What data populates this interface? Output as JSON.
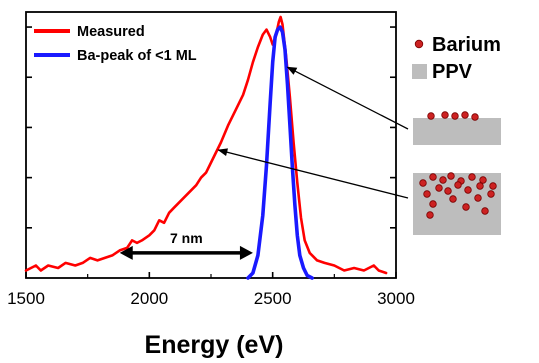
{
  "chart_data": {
    "type": "line",
    "x_axis": {
      "title": "Energy (eV)",
      "range": [
        1500,
        3000
      ],
      "ticks": [
        1500,
        2000,
        2500,
        3000
      ],
      "tick_labels": [
        "1500",
        "2000",
        "2500",
        "3000"
      ]
    },
    "y_axis": {
      "title": "",
      "range": [
        0,
        1.06
      ],
      "tick_values": [
        0.2,
        0.4,
        0.6,
        0.8,
        1.0
      ],
      "tick_labels_shown": false
    },
    "legend_position": "top-left",
    "series": [
      {
        "name": "Measured",
        "color": "#ff0000",
        "points": [
          [
            1500,
            0.03
          ],
          [
            1540,
            0.05
          ],
          [
            1560,
            0.03
          ],
          [
            1590,
            0.05
          ],
          [
            1630,
            0.04
          ],
          [
            1660,
            0.06
          ],
          [
            1700,
            0.05
          ],
          [
            1730,
            0.06
          ],
          [
            1760,
            0.08
          ],
          [
            1790,
            0.07
          ],
          [
            1820,
            0.08
          ],
          [
            1850,
            0.09
          ],
          [
            1880,
            0.11
          ],
          [
            1910,
            0.12
          ],
          [
            1930,
            0.15
          ],
          [
            1950,
            0.14
          ],
          [
            1970,
            0.15
          ],
          [
            2000,
            0.17
          ],
          [
            2020,
            0.19
          ],
          [
            2040,
            0.23
          ],
          [
            2060,
            0.22
          ],
          [
            2080,
            0.26
          ],
          [
            2100,
            0.28
          ],
          [
            2130,
            0.31
          ],
          [
            2160,
            0.34
          ],
          [
            2190,
            0.37
          ],
          [
            2210,
            0.4
          ],
          [
            2230,
            0.42
          ],
          [
            2260,
            0.48
          ],
          [
            2290,
            0.54
          ],
          [
            2320,
            0.61
          ],
          [
            2350,
            0.67
          ],
          [
            2380,
            0.73
          ],
          [
            2400,
            0.79
          ],
          [
            2420,
            0.86
          ],
          [
            2440,
            0.92
          ],
          [
            2460,
            0.97
          ],
          [
            2475,
            0.99
          ],
          [
            2490,
            0.96
          ],
          [
            2500,
            0.93
          ],
          [
            2512,
            0.96
          ],
          [
            2525,
            1.02
          ],
          [
            2532,
            1.04
          ],
          [
            2540,
            1.01
          ],
          [
            2555,
            0.88
          ],
          [
            2570,
            0.72
          ],
          [
            2585,
            0.54
          ],
          [
            2600,
            0.38
          ],
          [
            2615,
            0.24
          ],
          [
            2630,
            0.15
          ],
          [
            2650,
            0.1
          ],
          [
            2680,
            0.07
          ],
          [
            2710,
            0.06
          ],
          [
            2750,
            0.05
          ],
          [
            2790,
            0.03
          ],
          [
            2830,
            0.04
          ],
          [
            2870,
            0.03
          ],
          [
            2910,
            0.05
          ],
          [
            2930,
            0.03
          ],
          [
            2960,
            0.02
          ]
        ]
      },
      {
        "name": "Ba-peak of <1 ML",
        "color": "#1a1aff",
        "points": [
          [
            2400,
            0.0
          ],
          [
            2420,
            0.02
          ],
          [
            2440,
            0.09
          ],
          [
            2460,
            0.25
          ],
          [
            2475,
            0.45
          ],
          [
            2490,
            0.7
          ],
          [
            2500,
            0.86
          ],
          [
            2510,
            0.96
          ],
          [
            2520,
            0.99
          ],
          [
            2530,
            1.0
          ],
          [
            2540,
            0.98
          ],
          [
            2550,
            0.91
          ],
          [
            2560,
            0.77
          ],
          [
            2570,
            0.61
          ],
          [
            2580,
            0.44
          ],
          [
            2590,
            0.29
          ],
          [
            2600,
            0.17
          ],
          [
            2610,
            0.09
          ],
          [
            2625,
            0.04
          ],
          [
            2640,
            0.01
          ],
          [
            2660,
            0.0
          ]
        ]
      }
    ],
    "annotations": [
      {
        "text": "7 nm",
        "arrow": "double",
        "from_x": 1880,
        "to_x": 2420,
        "y": 0.1
      }
    ],
    "side_legend": {
      "items": [
        {
          "label": "Barium",
          "symbol": "dot",
          "color": "#cc2222"
        },
        {
          "label": "PPV",
          "symbol": "square",
          "color": "#bdbdbd"
        }
      ]
    },
    "insets": [
      {
        "description_id": "surface",
        "points_to_x": 2560,
        "points_to_y": 0.84
      },
      {
        "description_id": "bulk",
        "points_to_x": 2280,
        "points_to_y": 0.51
      }
    ]
  }
}
